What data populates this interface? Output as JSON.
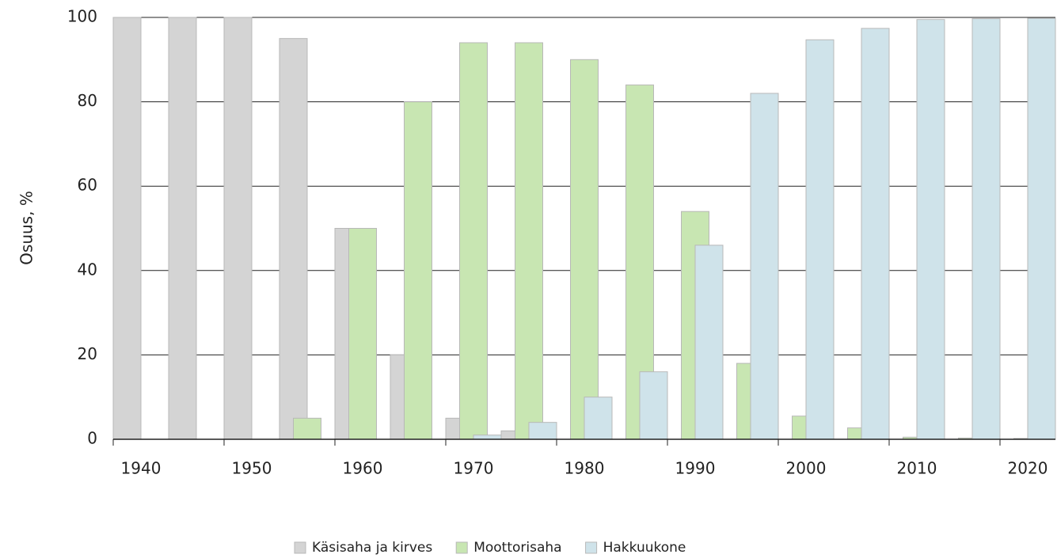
{
  "chart_data": {
    "type": "bar",
    "categories": [
      "1940",
      null,
      "1950",
      null,
      "1960",
      null,
      "1970",
      null,
      "1980",
      null,
      "1990",
      null,
      "2000",
      null,
      "2010",
      null,
      "2020"
    ],
    "series": [
      {
        "name": "Käsisaha ja kirves",
        "color": "#d4d4d4",
        "values": [
          100,
          100,
          100,
          95,
          50,
          20,
          5,
          2,
          0,
          0,
          0,
          0,
          0,
          0,
          0,
          0,
          0
        ]
      },
      {
        "name": "Moottorisaha",
        "color": "#c8e6b2",
        "values": [
          0,
          0,
          0,
          5,
          50,
          80,
          94,
          94,
          90,
          84,
          54,
          18,
          5.5,
          2.7,
          0.5,
          0.3,
          0.2
        ]
      },
      {
        "name": "Hakkuukone",
        "color": "#cfe3ea",
        "values": [
          0,
          0,
          0,
          0,
          0,
          0,
          1,
          4,
          10,
          16,
          46,
          82,
          94.7,
          97.4,
          99.5,
          99.7,
          99.8
        ]
      }
    ],
    "y_label": "Osuus, %",
    "ylim": [
      0,
      100
    ],
    "yticks": [
      0,
      20,
      40,
      60,
      80,
      100
    ],
    "grid": true,
    "legend": "bottom"
  }
}
